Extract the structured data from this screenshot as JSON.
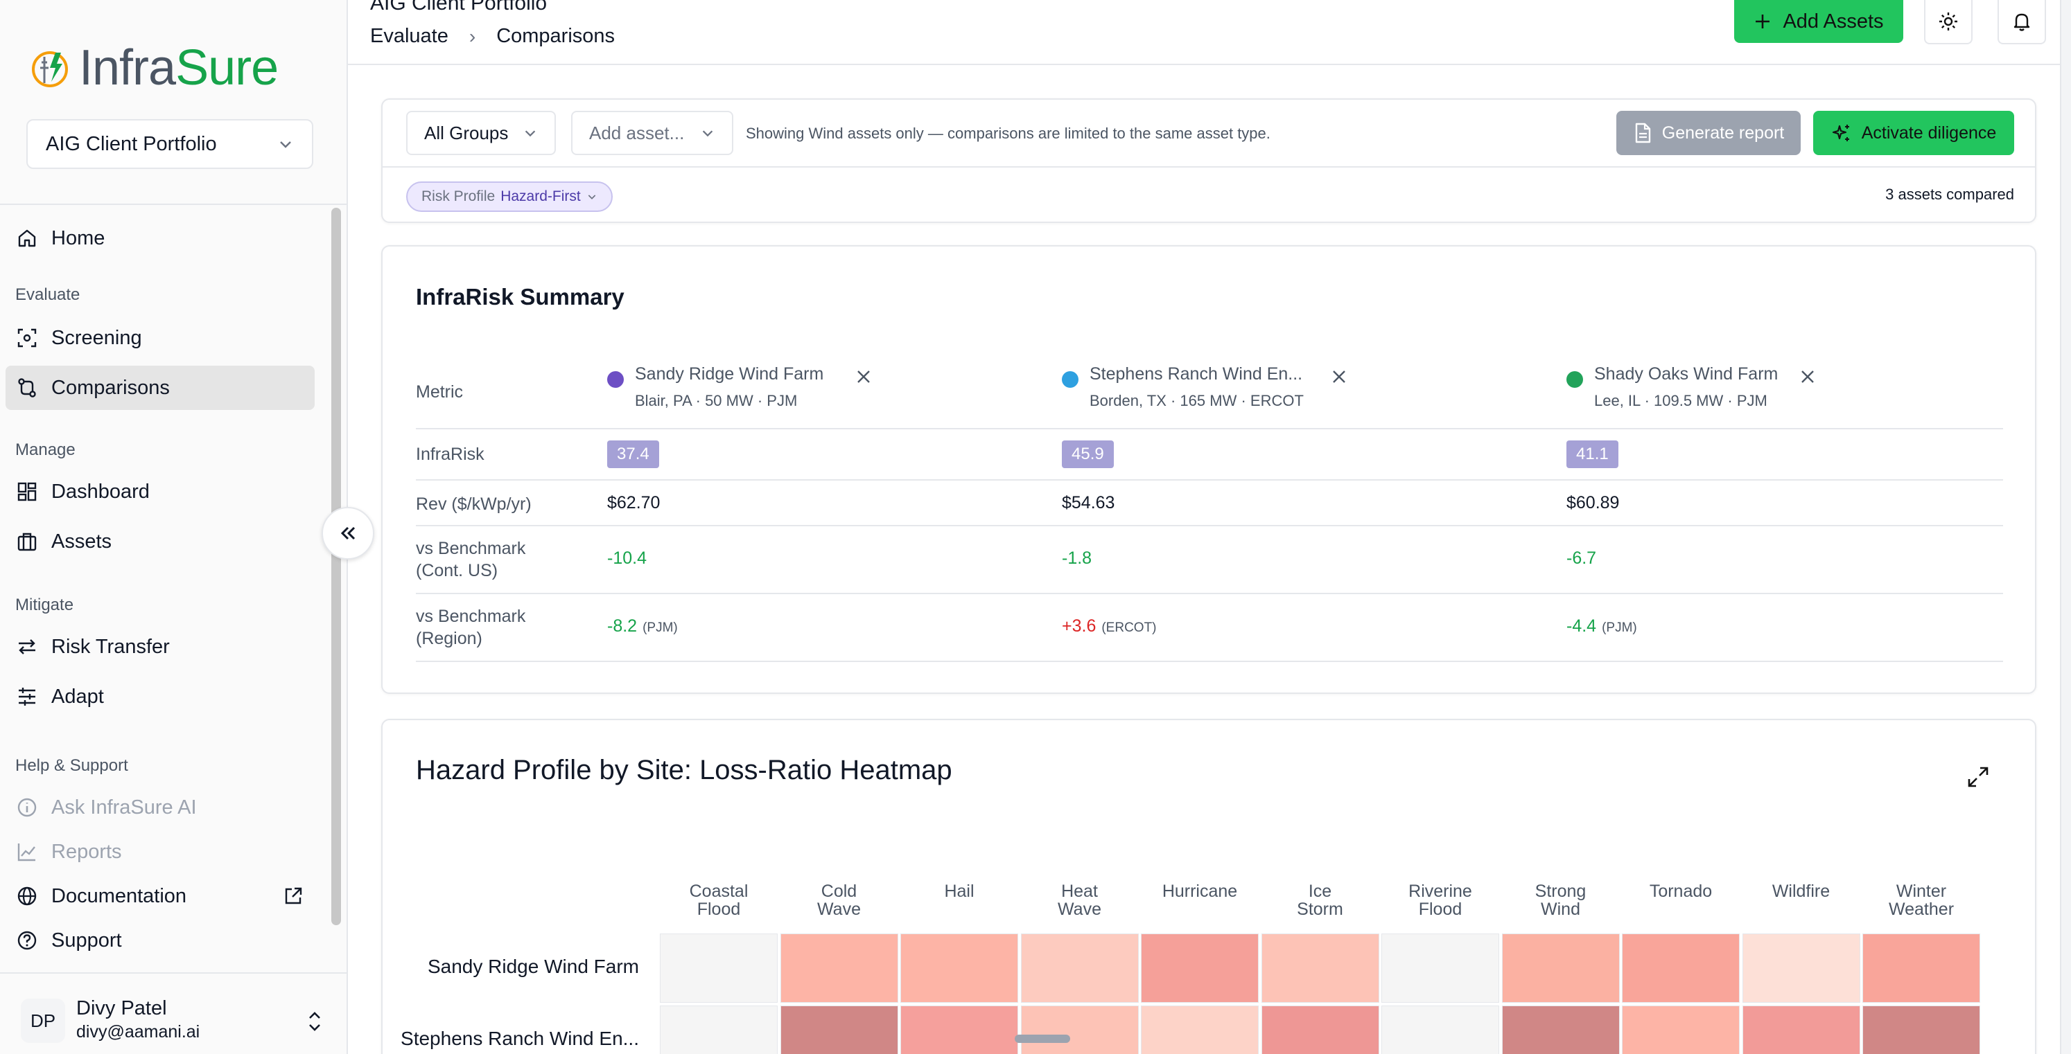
{
  "app": {
    "logo_part1": "Infra",
    "logo_part2": "Sure",
    "portfolio_select": "AIG Client Portfolio"
  },
  "sidebar": {
    "home": "Home",
    "sections": {
      "evaluate": "Evaluate",
      "manage": "Manage",
      "mitigate": "Mitigate",
      "help": "Help & Support"
    },
    "items": {
      "screening": "Screening",
      "comparisons": "Comparisons",
      "dashboard": "Dashboard",
      "assets": "Assets",
      "risk_transfer": "Risk Transfer",
      "adapt": "Adapt",
      "ask_ai": "Ask InfraSure AI",
      "reports": "Reports",
      "documentation": "Documentation",
      "support": "Support"
    },
    "active_item": "Comparisons",
    "user": {
      "initials": "DP",
      "name": "Divy Patel",
      "email": "divy@aamani.ai"
    }
  },
  "header": {
    "portfolio_title": "AIG Client Portfolio",
    "breadcrumb": [
      "Evaluate",
      "Comparisons"
    ],
    "add_assets_label": "Add Assets"
  },
  "filters": {
    "group_select": "All Groups",
    "asset_select_placeholder": "Add asset...",
    "note": "Showing Wind assets only — comparisons are limited to the same asset type.",
    "generate_report_label": "Generate report",
    "activate_diligence_label": "Activate diligence",
    "risk_profile_label": "Risk Profile",
    "risk_profile_value": "Hazard-First",
    "assets_compared": "3 assets compared"
  },
  "summary": {
    "title": "InfraRisk Summary",
    "metric_header": "Metric",
    "assets": [
      {
        "name": "Sandy Ridge Wind Farm",
        "meta": "Blair, PA · 50 MW · PJM",
        "color": "#6d4fc4"
      },
      {
        "name": "Stephens Ranch Wind En...",
        "meta": "Borden, TX · 165 MW · ERCOT",
        "color": "#2ea0e0"
      },
      {
        "name": "Shady Oaks Wind Farm",
        "meta": "Lee, IL · 109.5 MW · PJM",
        "color": "#22a35a"
      }
    ],
    "rows": {
      "infrarisk": {
        "label": "InfraRisk",
        "values": [
          "37.4",
          "45.9",
          "41.1"
        ]
      },
      "rev": {
        "label": "Rev ($/kWp/yr)",
        "values": [
          "$62.70",
          "$54.63",
          "$60.89"
        ]
      },
      "bench_us": {
        "label_1": "vs Benchmark",
        "label_2": "(Cont. US)",
        "values": [
          "-10.4",
          "-1.8",
          "-6.7"
        ]
      },
      "bench_region": {
        "label_1": "vs Benchmark",
        "label_2": "(Region)",
        "values": [
          "-8.2",
          "+3.6",
          "-4.4"
        ],
        "regions": [
          "(PJM)",
          "(ERCOT)",
          "(PJM)"
        ]
      }
    }
  },
  "heatmap": {
    "title": "Hazard Profile by Site: Loss-Ratio Heatmap",
    "columns": [
      [
        "Coastal",
        "Flood"
      ],
      [
        "Cold",
        "Wave"
      ],
      [
        "Hail",
        ""
      ],
      [
        "Heat",
        "Wave"
      ],
      [
        "Hurricane",
        ""
      ],
      [
        "Ice",
        "Storm"
      ],
      [
        "Riverine",
        "Flood"
      ],
      [
        "Strong",
        "Wind"
      ],
      [
        "Tornado",
        ""
      ],
      [
        "Wildfire",
        ""
      ],
      [
        "Winter",
        "Weather"
      ]
    ],
    "rows": [
      "Sandy Ridge Wind Farm",
      "Stephens Ranch Wind En..."
    ],
    "colors": [
      [
        "#f5f5f5",
        "#fdb4a6",
        "#fdb4a6",
        "#fdcbbf",
        "#f5a099",
        "#fdc3b6",
        "#f5f5f5",
        "#fbb1a2",
        "#f9a59a",
        "#fde0d7",
        "#f9a59a"
      ],
      [
        "#f5f5f5",
        "#d08786",
        "#f5a09c",
        "#fdc3b6",
        "#fdd3c8",
        "#ee9795",
        "#f5f5f5",
        "#d08786",
        "#fdb4a6",
        "#f29b98",
        "#d08786"
      ]
    ]
  }
}
